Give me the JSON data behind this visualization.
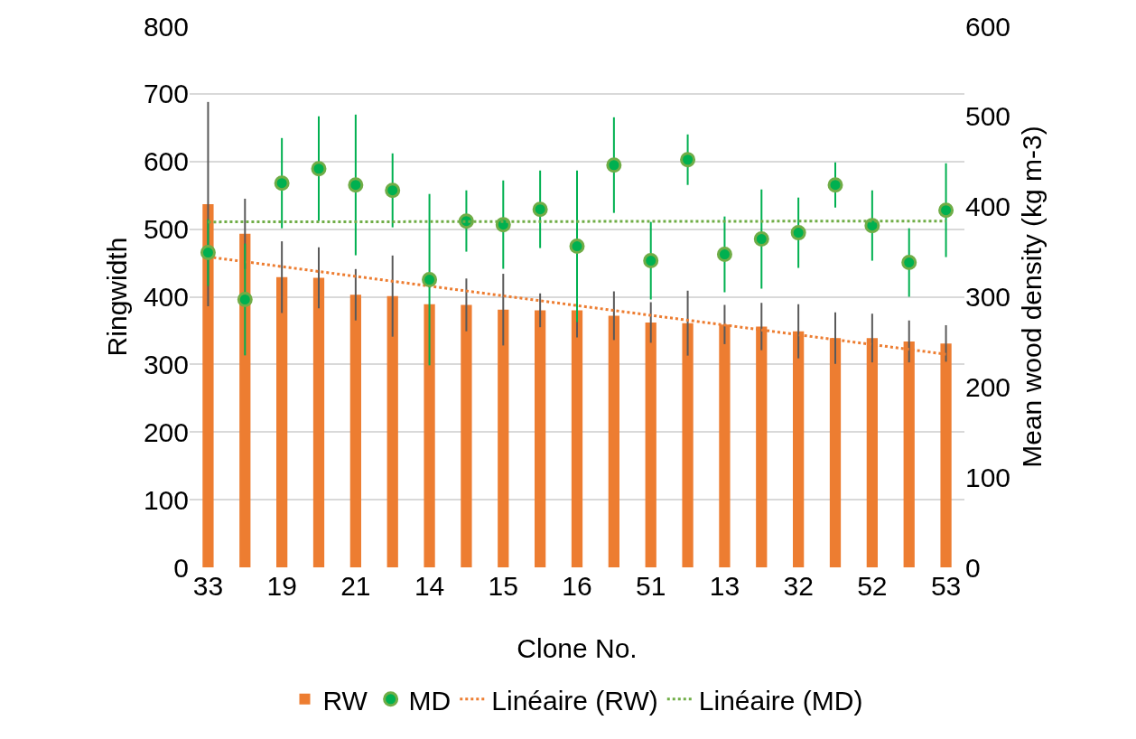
{
  "chart_data": {
    "type": "bar",
    "xlabel": "Clone No.",
    "ylabel": "Ringwidth",
    "y2label": "Mean wood density (kg m-3)",
    "categories": [
      "33",
      null,
      "19",
      null,
      "21",
      null,
      "14",
      null,
      "15",
      null,
      "16",
      null,
      "51",
      null,
      "13",
      null,
      "32",
      null,
      "52",
      null,
      "53"
    ],
    "series": [
      {
        "name": "RW",
        "color": "#ed7d31",
        "values": [
          537,
          493,
          429,
          428,
          403,
          401,
          389,
          388,
          381,
          380,
          380,
          372,
          362,
          361,
          359,
          356,
          349,
          339,
          339,
          334,
          331
        ],
        "errors": [
          151,
          52,
          53,
          45,
          38,
          60,
          null,
          39,
          53,
          25,
          40,
          36,
          30,
          48,
          29,
          35,
          40,
          38,
          36,
          31,
          27
        ]
      },
      {
        "name": "MD",
        "type": "scatter",
        "axis": "y2",
        "marker": "circle",
        "color": "#00b050",
        "values": [
          349,
          297,
          426,
          442,
          424,
          418,
          319,
          384,
          380,
          397,
          356,
          446,
          340,
          452,
          347,
          364,
          371,
          424,
          379,
          338,
          396
        ],
        "errors": [
          37,
          62,
          50,
          58,
          78,
          41,
          95,
          34,
          49,
          43,
          84,
          53,
          43,
          28,
          42,
          55,
          39,
          25,
          39,
          38,
          52
        ]
      },
      {
        "name": "Linéaire (RW)",
        "type": "line",
        "line_style": "dotted",
        "color": "#ed7d31",
        "x": [
          "33",
          "53"
        ],
        "values": [
          459,
          315
        ]
      },
      {
        "name": "Linéaire (MD)",
        "type": "line",
        "line_style": "dotted",
        "axis": "y2",
        "color": "#70ad47",
        "x": [
          "33",
          "53"
        ],
        "values": [
          383,
          384
        ]
      }
    ],
    "ylim": [
      0,
      800
    ],
    "yticks": [
      0,
      100,
      200,
      300,
      400,
      500,
      600,
      700,
      800
    ],
    "y2lim": [
      0,
      600
    ],
    "y2ticks": [
      0,
      100,
      200,
      300,
      400,
      500,
      600
    ],
    "grid": "y",
    "legend": "bottom"
  }
}
